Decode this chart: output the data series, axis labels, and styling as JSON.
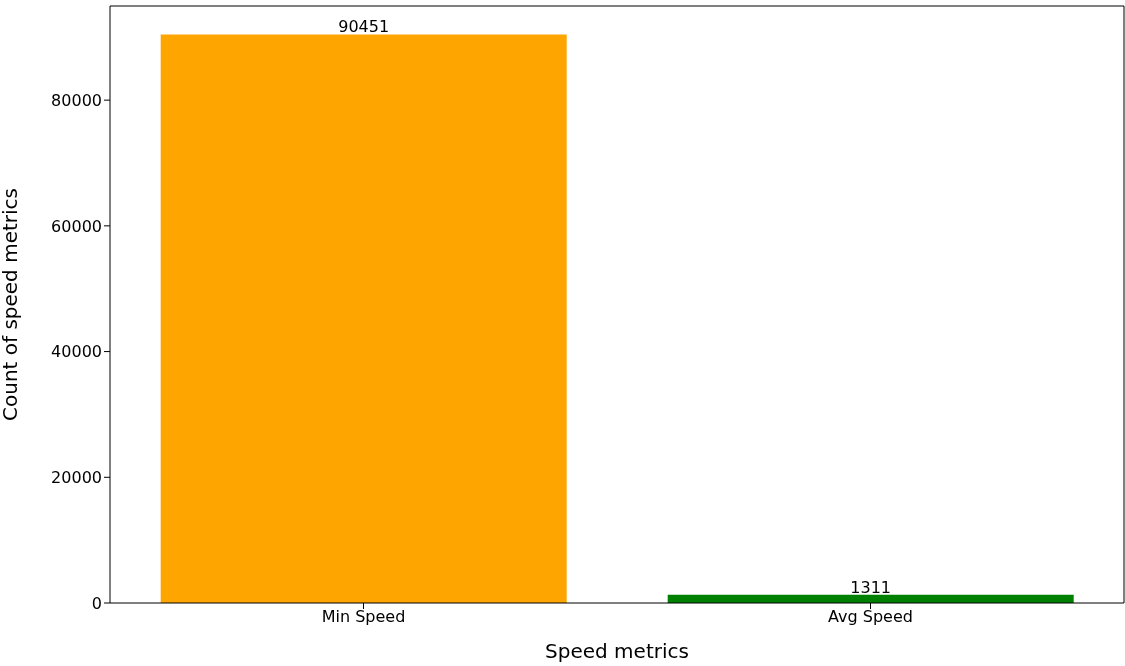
{
  "chart_data": {
    "type": "bar",
    "xlabel": "Speed metrics",
    "ylabel": "Count of speed metrics",
    "categories": [
      "Min Speed",
      "Avg Speed"
    ],
    "values": [
      90451,
      1311
    ],
    "colors": [
      "#ffa500",
      "#008000"
    ],
    "ylim": [
      0,
      94974
    ],
    "yticks": [
      0,
      20000,
      40000,
      60000,
      80000
    ],
    "data_labels": true,
    "grid": false,
    "legend": false
  }
}
